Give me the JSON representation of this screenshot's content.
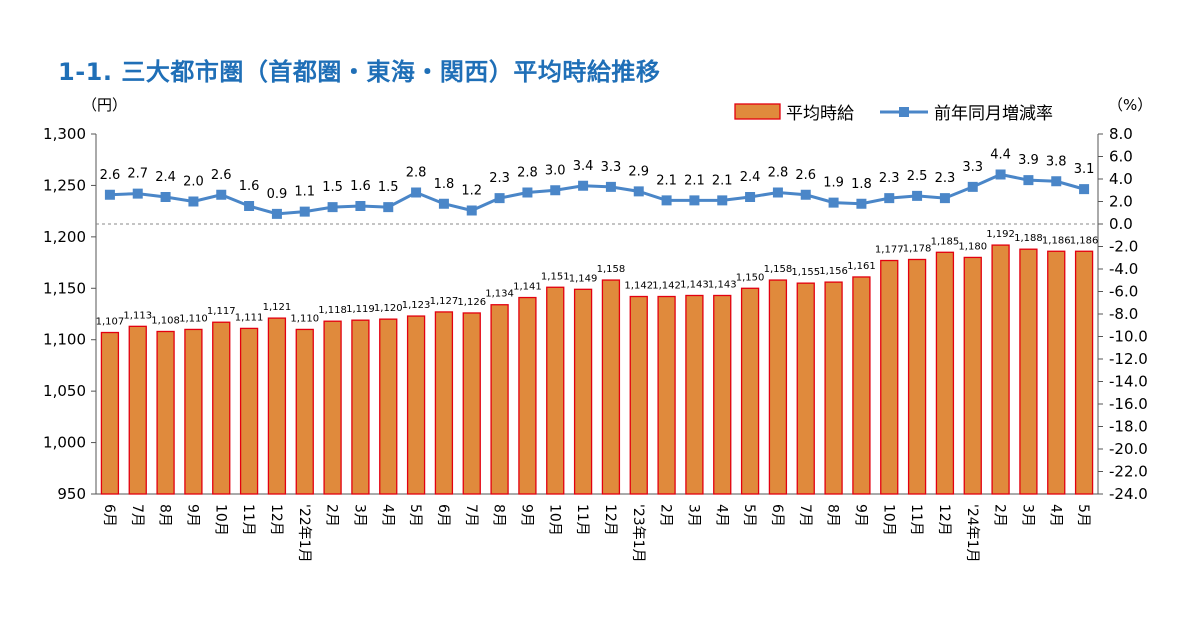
{
  "title": "1-1. 三大都市圏（首都圏・東海・関西）平均時給推移",
  "chart_data": {
    "type": "bar+line",
    "left_unit": "（円）",
    "right_unit": "（%）",
    "left_ylim": [
      950,
      1300
    ],
    "left_ticks": [
      "950",
      "1,000",
      "1,050",
      "1,100",
      "1,150",
      "1,200",
      "1,250",
      "1,300"
    ],
    "right_ylim": [
      -24.0,
      8.0
    ],
    "right_ticks": [
      "-24.0",
      "-22.0",
      "-20.0",
      "-18.0",
      "-16.0",
      "-14.0",
      "-12.0",
      "-10.0",
      "-8.0",
      "-6.0",
      "-4.0",
      "-2.0",
      "0.0",
      "2.0",
      "4.0",
      "6.0",
      "8.0"
    ],
    "categories": [
      "6月",
      "7月",
      "8月",
      "9月",
      "10月",
      "11月",
      "12月",
      "'22年1月",
      "2月",
      "3月",
      "4月",
      "5月",
      "6月",
      "7月",
      "8月",
      "9月",
      "10月",
      "11月",
      "12月",
      "'23年1月",
      "2月",
      "3月",
      "4月",
      "5月",
      "6月",
      "7月",
      "8月",
      "9月",
      "10月",
      "11月",
      "12月",
      "'24年1月",
      "2月",
      "3月",
      "4月",
      "5月"
    ],
    "series": [
      {
        "name": "平均時給",
        "type": "bar",
        "axis": "left",
        "color": "#e08a3c",
        "edge_color": "#e3000f",
        "values": [
          1107,
          1113,
          1108,
          1110,
          1117,
          1111,
          1121,
          1110,
          1118,
          1119,
          1120,
          1123,
          1127,
          1126,
          1134,
          1141,
          1151,
          1149,
          1158,
          1142,
          1142,
          1143,
          1143,
          1150,
          1158,
          1155,
          1156,
          1161,
          1177,
          1178,
          1185,
          1180,
          1192,
          1188,
          1186,
          1186
        ],
        "labels": [
          "1,107",
          "1,113",
          "1,108",
          "1,110",
          "1,117",
          "1,111",
          "1,121",
          "1,110",
          "1,118",
          "1,119",
          "1,120",
          "1,123",
          "1,127",
          "1,126",
          "1,134",
          "1,141",
          "1,151",
          "1,149",
          "1,158",
          "1,142",
          "1,142",
          "1,143",
          "1,143",
          "1,150",
          "1,158",
          "1,155",
          "1,156",
          "1,161",
          "1,177",
          "1,178",
          "1,185",
          "1,180",
          "1,192",
          "1,188",
          "1,186",
          "1,186"
        ]
      },
      {
        "name": "前年同月増減率",
        "type": "line",
        "axis": "right",
        "color": "#4a86c8",
        "values": [
          2.6,
          2.7,
          2.4,
          2.0,
          2.6,
          1.6,
          0.9,
          1.1,
          1.5,
          1.6,
          1.5,
          2.8,
          1.8,
          1.2,
          2.3,
          2.8,
          3.0,
          3.4,
          3.3,
          2.9,
          2.1,
          2.1,
          2.1,
          2.4,
          2.8,
          2.6,
          1.9,
          1.8,
          2.3,
          2.5,
          2.3,
          3.3,
          4.4,
          3.9,
          3.8,
          3.1
        ],
        "labels": [
          "2.6",
          "2.7",
          "2.4",
          "2.0",
          "2.6",
          "1.6",
          "0.9",
          "1.1",
          "1.5",
          "1.6",
          "1.5",
          "2.8",
          "1.8",
          "1.2",
          "2.3",
          "2.8",
          "3.0",
          "3.4",
          "3.3",
          "2.9",
          "2.1",
          "2.1",
          "2.1",
          "2.4",
          "2.8",
          "2.6",
          "1.9",
          "1.8",
          "2.3",
          "2.5",
          "2.3",
          "3.3",
          "4.4",
          "3.9",
          "3.8",
          "3.1"
        ]
      }
    ],
    "zero_line": "dashed",
    "grid": false,
    "legend_position": "top-right"
  }
}
